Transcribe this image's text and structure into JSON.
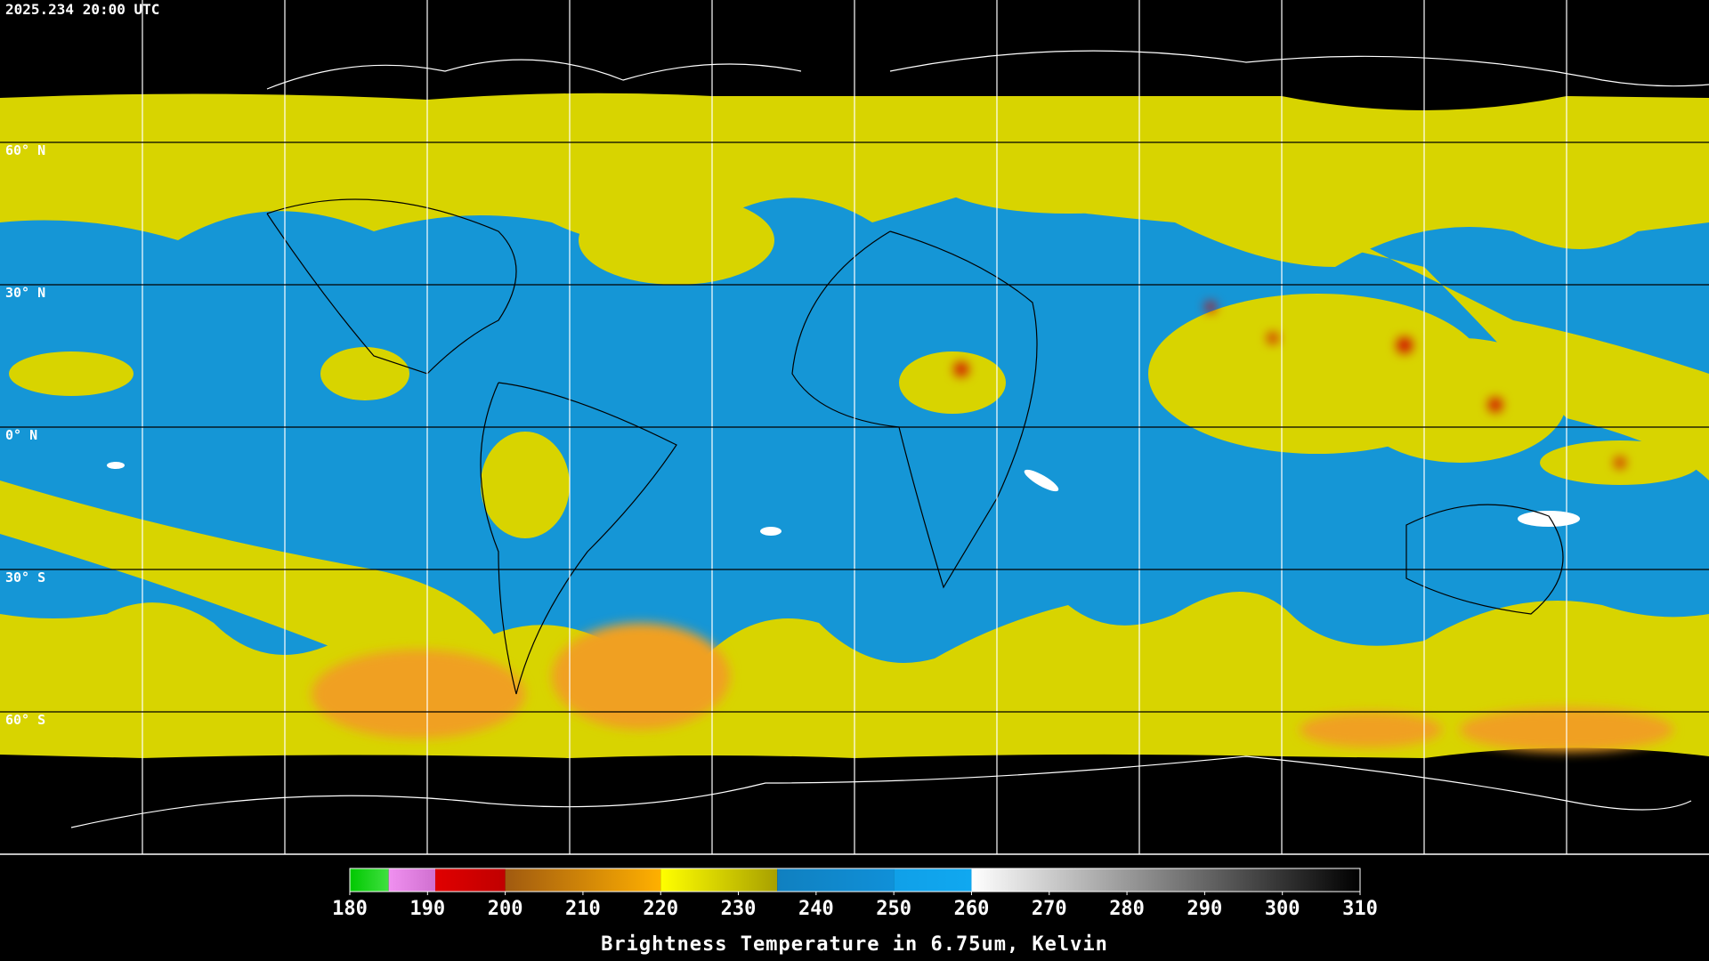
{
  "header": {
    "timestamp": "2025.234 20:00 UTC"
  },
  "map": {
    "latitude_labels": [
      "60° N",
      "30° N",
      "0° N",
      "30° S",
      "60° S"
    ]
  },
  "colorbar": {
    "range": [
      180,
      310
    ],
    "ticks": [
      180,
      190,
      200,
      210,
      220,
      230,
      240,
      250,
      260,
      270,
      280,
      290,
      300,
      310
    ],
    "segments": [
      {
        "from": 180,
        "to": 185,
        "colors": [
          "#00c800",
          "#40e040"
        ]
      },
      {
        "from": 185,
        "to": 191,
        "colors": [
          "#f090f0",
          "#d070d0"
        ]
      },
      {
        "from": 191,
        "to": 200,
        "colors": [
          "#e00000",
          "#c00000"
        ]
      },
      {
        "from": 200,
        "to": 220,
        "colors": [
          "#a05a10",
          "#ffb000"
        ]
      },
      {
        "from": 220,
        "to": 235,
        "colors": [
          "#ffff00",
          "#a8a000"
        ]
      },
      {
        "from": 235,
        "to": 250,
        "colors": [
          "#1080c0",
          "#1090d8"
        ]
      },
      {
        "from": 250,
        "to": 260,
        "colors": [
          "#10a0e8",
          "#10a8f0"
        ]
      },
      {
        "from": 260,
        "to": 310,
        "colors": [
          "#ffffff",
          "#000000"
        ]
      }
    ],
    "title": "Brightness Temperature in 6.75um, Kelvin"
  }
}
